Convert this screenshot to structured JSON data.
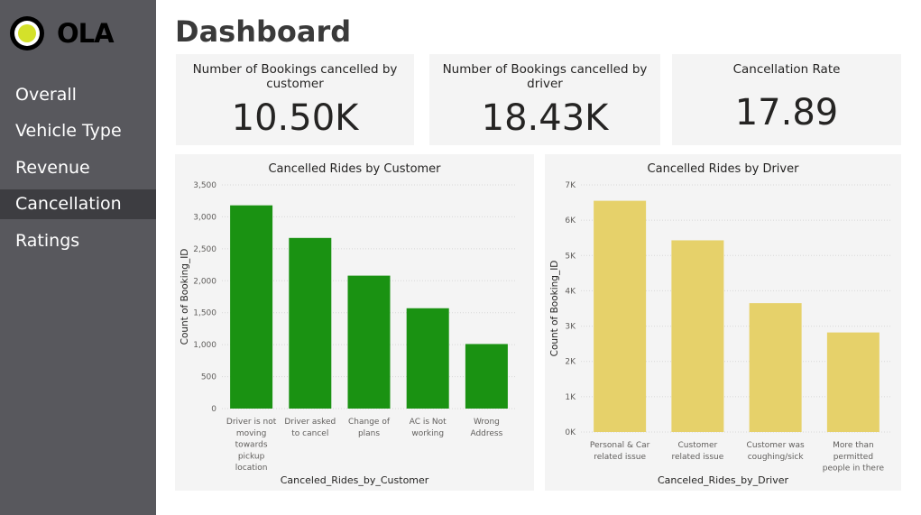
{
  "brand": {
    "name": "OLA",
    "logo_color": "#d4e12a"
  },
  "sidebar": {
    "items": [
      {
        "label": "Overall"
      },
      {
        "label": "Vehicle Type"
      },
      {
        "label": "Revenue"
      },
      {
        "label": "Cancellation",
        "active": true
      },
      {
        "label": "Ratings"
      }
    ]
  },
  "page": {
    "title": "Dashboard"
  },
  "cards": [
    {
      "title": "Number of Bookings cancelled by customer",
      "value": "10.50K"
    },
    {
      "title": "Number of Bookings cancelled by driver",
      "value": "18.43K"
    },
    {
      "title": "Cancellation Rate",
      "value": "17.89"
    }
  ],
  "chart_data": [
    {
      "type": "bar",
      "title": "Cancelled Rides by Customer",
      "xlabel": "Canceled_Rides_by_Customer",
      "ylabel": "Count of Booking_ID",
      "categories": [
        "Driver is not moving towards pickup location",
        "Driver asked to cancel",
        "Change of plans",
        "AC is Not working",
        "Wrong Address"
      ],
      "category_lines": [
        [
          "Driver is not",
          "moving",
          "towards",
          "pickup",
          "location"
        ],
        [
          "Driver asked",
          "to cancel"
        ],
        [
          "Change of",
          "plans"
        ],
        [
          "AC is Not",
          "working"
        ],
        [
          "Wrong",
          "Address"
        ]
      ],
      "values": [
        3180,
        2670,
        2080,
        1570,
        1010
      ],
      "ylim": [
        0,
        3500
      ],
      "yticks": [
        "0",
        "500",
        "1,000",
        "1,500",
        "2,000",
        "2,500",
        "3,000",
        "3,500"
      ],
      "color": "#1a9212",
      "grid": true
    },
    {
      "type": "bar",
      "title": "Cancelled Rides by Driver",
      "xlabel": "Canceled_Rides_by_Driver",
      "ylabel": "Count of Booking_ID",
      "categories": [
        "Personal & Car related issue",
        "Customer related issue",
        "Customer was coughing/sick",
        "More than permitted people in there"
      ],
      "category_lines": [
        [
          "Personal & Car",
          "related issue"
        ],
        [
          "Customer",
          "related issue"
        ],
        [
          "Customer was",
          "coughing/sick"
        ],
        [
          "More than",
          "permitted",
          "people in there"
        ]
      ],
      "values": [
        6550,
        5430,
        3650,
        2820
      ],
      "ylim": [
        0,
        7000
      ],
      "yticks": [
        "0K",
        "1K",
        "2K",
        "3K",
        "4K",
        "5K",
        "6K",
        "7K"
      ],
      "color": "#e6d16a",
      "grid": true
    }
  ]
}
